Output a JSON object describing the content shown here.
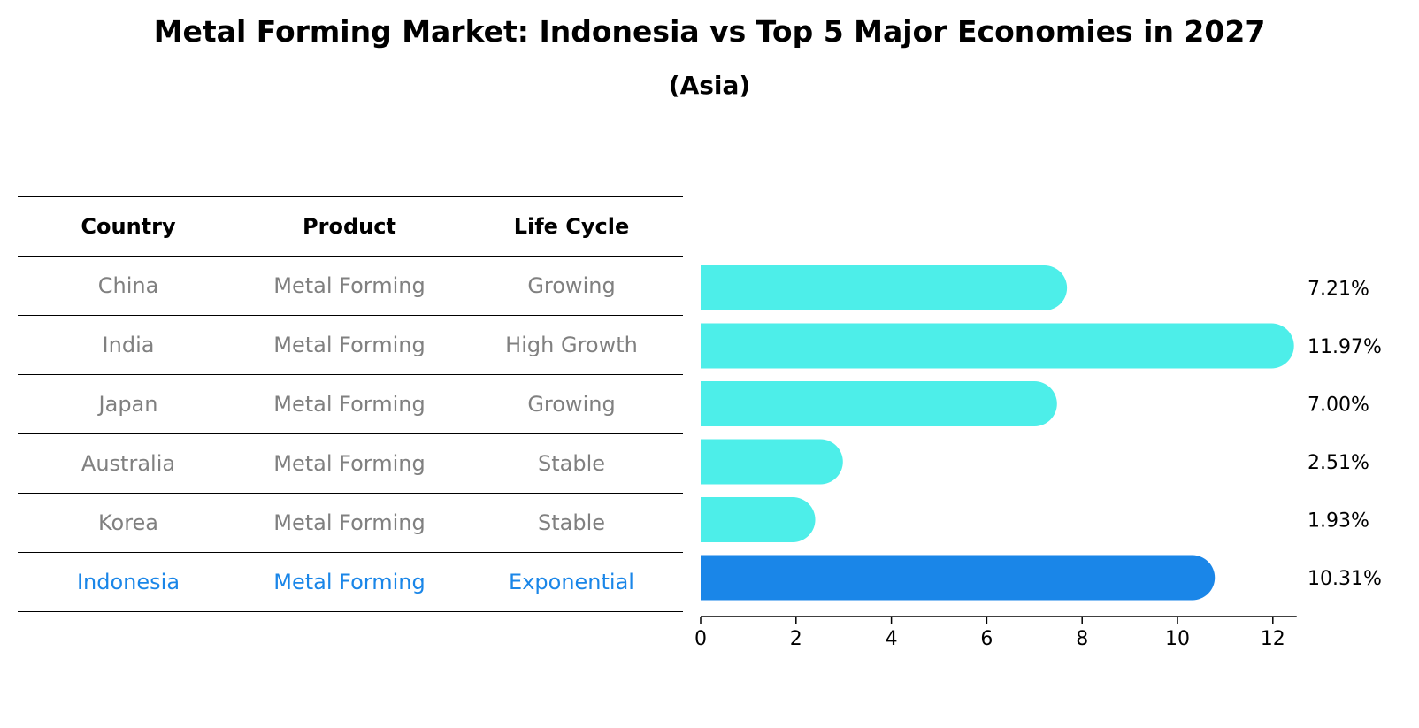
{
  "title": "Metal Forming Market: Indonesia vs Top 5 Major Economies in 2027",
  "subtitle": "(Asia)",
  "table": {
    "headers": [
      "Country",
      "Product",
      "Life Cycle"
    ],
    "rows": [
      [
        "China",
        "Metal Forming",
        "Growing"
      ],
      [
        "India",
        "Metal Forming",
        "High Growth"
      ],
      [
        "Japan",
        "Metal Forming",
        "Growing"
      ],
      [
        "Australia",
        "Metal Forming",
        "Stable"
      ],
      [
        "Korea",
        "Metal Forming",
        "Stable"
      ],
      [
        "Indonesia",
        "Metal Forming",
        "Exponential"
      ]
    ]
  },
  "colors": {
    "bar": "#4deee9",
    "highlight": "#1a86e8",
    "text_muted": "#808080"
  },
  "chart_data": {
    "type": "bar",
    "orientation": "horizontal",
    "categories": [
      "China",
      "India",
      "Japan",
      "Australia",
      "Korea",
      "Indonesia"
    ],
    "values": [
      7.21,
      11.97,
      7.0,
      2.51,
      1.93,
      10.31
    ],
    "value_labels": [
      "7.21%",
      "11.97%",
      "7.00%",
      "2.51%",
      "1.93%",
      "10.31%"
    ],
    "highlight_category": "Indonesia",
    "xlim": [
      0,
      12.5
    ],
    "xticks": [
      0,
      2,
      4,
      6,
      8,
      10,
      12
    ],
    "title": "Metal Forming Market: Indonesia vs Top 5 Major Economies in 2027",
    "subtitle": "(Asia)",
    "xlabel": "",
    "ylabel": "",
    "grid": false
  }
}
